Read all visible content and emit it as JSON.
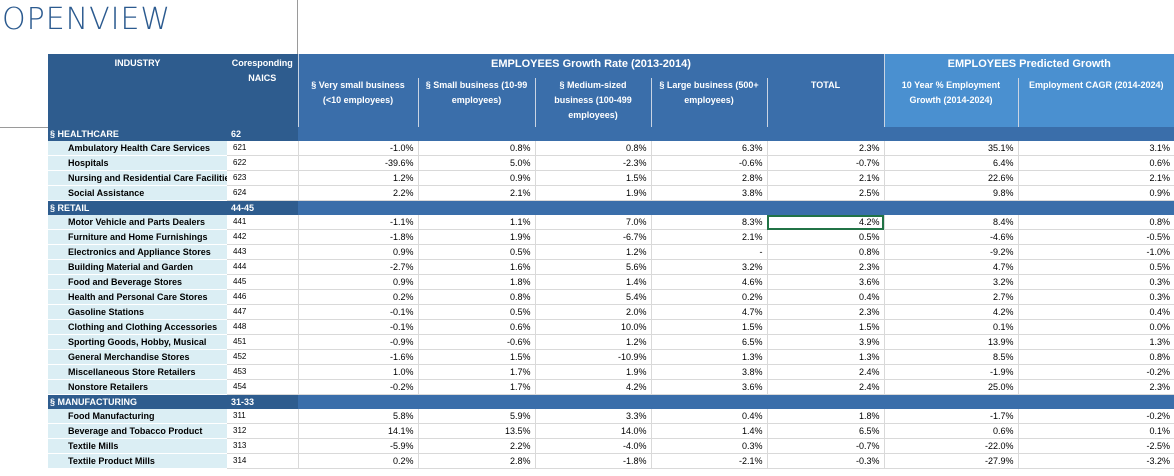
{
  "logo": "OPENVIEW",
  "headers": {
    "industry": "INDUSTRY",
    "naics": "Coresponding NAICS",
    "growth_title": "EMPLOYEES Growth Rate (2013-2014)",
    "predicted_title": "EMPLOYEES Predicted Growth",
    "columns": [
      "§ Very small business (<10 employees)",
      "§ Small business (10-99 employees)",
      "§ Medium-sized business (100-499 employees)",
      "§ Large business (500+ employees)",
      "TOTAL",
      "10 Year % Employment Growth (2014-2024)",
      "Employment CAGR (2014-2024)"
    ]
  },
  "sections": [
    {
      "name": "§ HEALTHCARE",
      "naics": "62",
      "rows": [
        [
          "Ambulatory Health Care Services",
          "621",
          "-1.0%",
          "0.8%",
          "0.8%",
          "6.3%",
          "2.3%",
          "35.1%",
          "3.1%"
        ],
        [
          "Hospitals",
          "622",
          "-39.6%",
          "5.0%",
          "-2.3%",
          "-0.6%",
          "-0.7%",
          "6.4%",
          "0.6%"
        ],
        [
          "Nursing and Residential Care Facilities",
          "623",
          "1.2%",
          "0.9%",
          "1.5%",
          "2.8%",
          "2.1%",
          "22.6%",
          "2.1%"
        ],
        [
          "Social Assistance",
          "624",
          "2.2%",
          "2.1%",
          "1.9%",
          "3.8%",
          "2.5%",
          "9.8%",
          "0.9%"
        ]
      ]
    },
    {
      "name": "§ RETAIL",
      "naics": "44-45",
      "rows": [
        [
          "Motor Vehicle and Parts Dealers",
          "441",
          "-1.1%",
          "1.1%",
          "7.0%",
          "8.3%",
          "4.2%",
          "8.4%",
          "0.8%"
        ],
        [
          "Furniture and Home Furnishings",
          "442",
          "-1.8%",
          "1.9%",
          "-6.7%",
          "2.1%",
          "0.5%",
          "-4.6%",
          "-0.5%"
        ],
        [
          "Electronics and Appliance Stores",
          "443",
          "0.9%",
          "0.5%",
          "1.2%",
          "-",
          "0.8%",
          "-9.2%",
          "-1.0%"
        ],
        [
          "Building Material and Garden",
          "444",
          "-2.7%",
          "1.6%",
          "5.6%",
          "3.2%",
          "2.3%",
          "4.7%",
          "0.5%"
        ],
        [
          "Food and Beverage Stores",
          "445",
          "0.9%",
          "1.8%",
          "1.4%",
          "4.6%",
          "3.6%",
          "3.2%",
          "0.3%"
        ],
        [
          "Health and Personal Care Stores",
          "446",
          "0.2%",
          "0.8%",
          "5.4%",
          "0.2%",
          "0.4%",
          "2.7%",
          "0.3%"
        ],
        [
          "Gasoline Stations",
          "447",
          "-0.1%",
          "0.5%",
          "2.0%",
          "4.7%",
          "2.3%",
          "4.2%",
          "0.4%"
        ],
        [
          "Clothing and Clothing Accessories",
          "448",
          "-0.1%",
          "0.6%",
          "10.0%",
          "1.5%",
          "1.5%",
          "0.1%",
          "0.0%"
        ],
        [
          "Sporting Goods, Hobby, Musical",
          "451",
          "-0.9%",
          "-0.6%",
          "1.2%",
          "6.5%",
          "3.9%",
          "13.9%",
          "1.3%"
        ],
        [
          "General Merchandise Stores",
          "452",
          "-1.6%",
          "1.5%",
          "-10.9%",
          "1.3%",
          "1.3%",
          "8.5%",
          "0.8%"
        ],
        [
          "Miscellaneous Store Retailers",
          "453",
          "1.0%",
          "1.7%",
          "1.9%",
          "3.8%",
          "2.4%",
          "-1.9%",
          "-0.2%"
        ],
        [
          "Nonstore Retailers",
          "454",
          "-0.2%",
          "1.7%",
          "4.2%",
          "3.6%",
          "2.4%",
          "25.0%",
          "2.3%"
        ]
      ]
    },
    {
      "name": "§ MANUFACTURING",
      "naics": "31-33",
      "rows": [
        [
          "Food Manufacturing",
          "311",
          "5.8%",
          "5.9%",
          "3.3%",
          "0.4%",
          "1.8%",
          "-1.7%",
          "-0.2%"
        ],
        [
          "Beverage and Tobacco Product",
          "312",
          "14.1%",
          "13.5%",
          "14.0%",
          "1.4%",
          "6.5%",
          "0.6%",
          "0.1%"
        ],
        [
          "Textile Mills",
          "313",
          "-5.9%",
          "2.2%",
          "-4.0%",
          "0.3%",
          "-0.7%",
          "-22.0%",
          "-2.5%"
        ],
        [
          "Textile Product Mills",
          "314",
          "0.2%",
          "2.8%",
          "-1.8%",
          "-2.1%",
          "-0.3%",
          "-27.9%",
          "-3.2%"
        ]
      ]
    }
  ],
  "selected_cell": {
    "section": 1,
    "row": 0,
    "column": "TOTAL"
  }
}
